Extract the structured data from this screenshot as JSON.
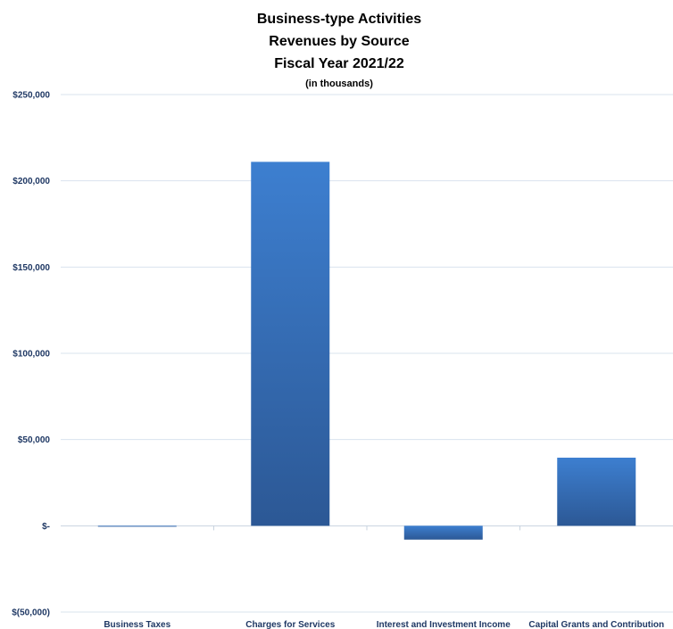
{
  "chart_data": {
    "type": "bar",
    "title": "Business-type Activities",
    "subtitle_lines": [
      "Revenues by Source",
      "Fiscal Year 2021/22"
    ],
    "units_note": "(in thousands)",
    "categories": [
      "Business Taxes",
      "Charges for Services",
      "Interest and Investment Income",
      "Capital Grants and Contribution"
    ],
    "values": [
      0,
      211000,
      -8000,
      39500
    ],
    "ylim": [
      -50000,
      250000
    ],
    "yticks": [
      -50000,
      0,
      50000,
      100000,
      150000,
      200000,
      250000
    ],
    "ytick_labels": [
      "$(50,000)",
      "$-",
      "$50,000",
      "$100,000",
      "$150,000",
      "$200,000",
      "$250,000"
    ],
    "xlabel": "",
    "ylabel": "",
    "grid": true,
    "legend": "none",
    "bar_color_top": "#3d7fd0",
    "bar_color_bottom": "#2c5895"
  }
}
